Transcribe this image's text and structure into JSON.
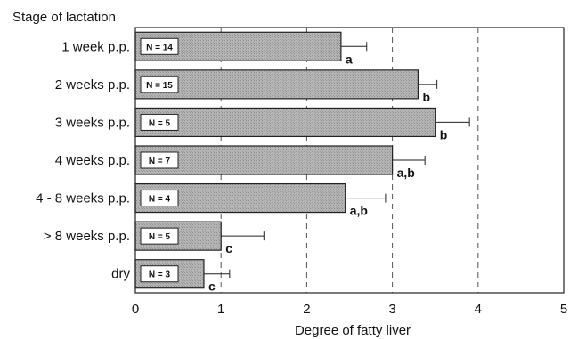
{
  "chart_data": {
    "type": "bar",
    "orientation": "horizontal",
    "title": "",
    "ylabel": "Stage of lactation",
    "xlabel": "Degree of fatty liver",
    "xlim": [
      0,
      5
    ],
    "xticks": [
      "0",
      "1",
      "2",
      "3",
      "4",
      "5"
    ],
    "grid": "vertical dashed",
    "categories": [
      "1 week p.p.",
      "2 weeks p.p.",
      "3 weeks p.p.",
      "4 weeks p.p.",
      "4 - 8 weeks p.p.",
      "> 8 weeks p.p.",
      "dry"
    ],
    "values": [
      2.4,
      3.3,
      3.5,
      3.0,
      2.45,
      1.0,
      0.8
    ],
    "error_upper": [
      2.7,
      3.52,
      3.9,
      3.38,
      2.92,
      1.5,
      1.1
    ],
    "n_labels": [
      "N = 14",
      "N = 15",
      "N = 5",
      "N = 7",
      "N = 4",
      "N = 5",
      "N = 3"
    ],
    "significance_labels": [
      "a",
      "b",
      "b",
      "a,b",
      "a,b",
      "c",
      "c"
    ],
    "colors": {
      "bar_fill": "#a8a8a8",
      "bar_stroke": "#222222",
      "grid": "#555555"
    }
  }
}
